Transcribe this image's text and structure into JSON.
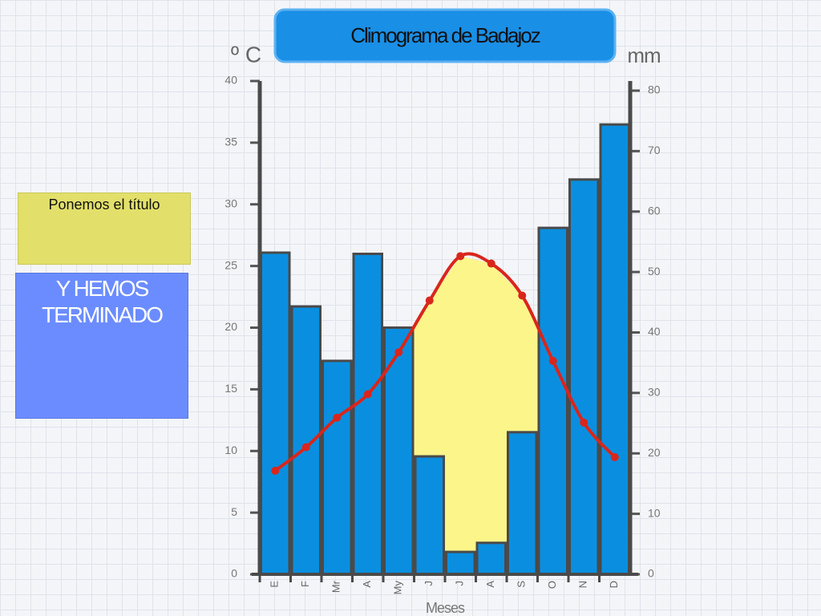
{
  "chart_data": {
    "type": "climograph",
    "title": "Climograma de Badajoz",
    "ylabel": "º C",
    "y2label": "mm",
    "xlabel": "Meses",
    "categories": [
      "E",
      "F",
      "Mr",
      "A",
      "My",
      "J",
      "J",
      "A",
      "S",
      "O",
      "N",
      "D"
    ],
    "series": [
      {
        "kind": "bar",
        "axis": "y2",
        "color": "#0a8fe0",
        "values": [
          53.2,
          44.3,
          35.3,
          53,
          40.8,
          19.5,
          3.7,
          5.2,
          23.5,
          57.3,
          65.3,
          74.4
        ]
      },
      {
        "kind": "line",
        "color": "#d9261c",
        "values": [
          8.4,
          10.3,
          12.7,
          14.6,
          18,
          22.2,
          25.8,
          25.2,
          22.6,
          17.3,
          12.3,
          9.5
        ]
      }
    ],
    "arid_color": "#fbf58a",
    "ylim": [
      0,
      40
    ],
    "yticks": [
      0,
      5,
      10,
      15,
      20,
      25,
      30,
      35,
      40
    ],
    "y2lim": [
      0,
      80
    ],
    "y2ticks": [
      0,
      10,
      20,
      30,
      40,
      50,
      60,
      70,
      80
    ]
  },
  "panels": [
    "Ponemos el título",
    "Y HEMOS TERMINADO"
  ]
}
